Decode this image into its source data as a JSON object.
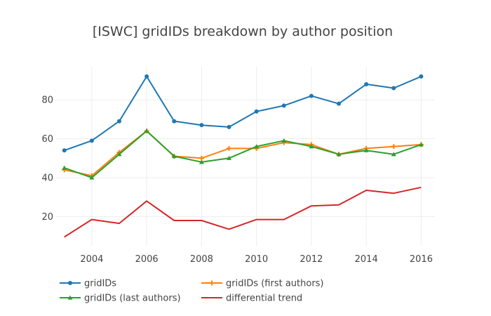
{
  "chart_data": {
    "type": "line",
    "title": "[ISWC] gridIDs breakdown by author position",
    "xlabel": "",
    "ylabel": "",
    "x": [
      2003,
      2004,
      2005,
      2006,
      2007,
      2008,
      2009,
      2010,
      2011,
      2012,
      2013,
      2014,
      2015,
      2016
    ],
    "xlim": [
      2002.7,
      2016.5
    ],
    "ylim": [
      5,
      97
    ],
    "x_ticks": [
      "2004",
      "2006",
      "2008",
      "2010",
      "2012",
      "2014",
      "2016"
    ],
    "y_ticks": [
      "20",
      "40",
      "60",
      "80"
    ],
    "grid": true,
    "legend_position": "bottom",
    "series": [
      {
        "name": "gridIDs",
        "color": "#1f77b4",
        "marker": "circle",
        "values": [
          54,
          59,
          69,
          92,
          69,
          67,
          66,
          74,
          77,
          82,
          78,
          88,
          86,
          92
        ]
      },
      {
        "name": "gridIDs (first authors)",
        "color": "#ff7f0e",
        "marker": "cross",
        "values": [
          44,
          41,
          53,
          64,
          51,
          50,
          55,
          55,
          58,
          57,
          52,
          55,
          56,
          57
        ]
      },
      {
        "name": "gridIDs (last authors)",
        "color": "#2ca02c",
        "marker": "triangle",
        "values": [
          45,
          40,
          52,
          64,
          51,
          48,
          50,
          56,
          59,
          56,
          52,
          54,
          52,
          57
        ]
      },
      {
        "name": "differential trend",
        "color": "#d62728",
        "marker": "none",
        "values": [
          9.5,
          18.5,
          16.5,
          28,
          18,
          18,
          13.5,
          18.5,
          18.5,
          25.5,
          26,
          33.5,
          32,
          35
        ]
      }
    ]
  }
}
